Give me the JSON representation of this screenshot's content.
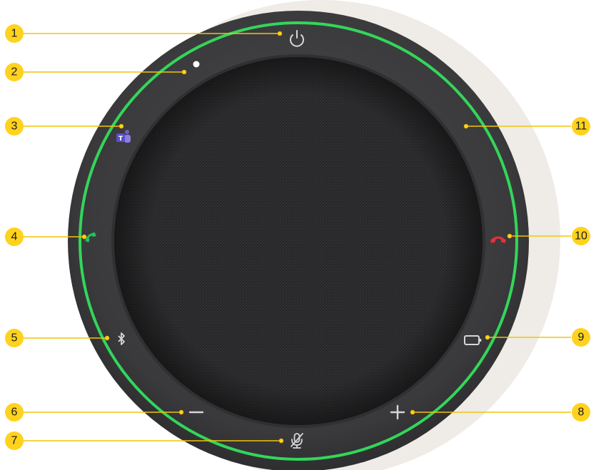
{
  "colors": {
    "background": "#ffffff",
    "shadow_backdrop": "#efebe6",
    "device_body": "#3b3b3d",
    "device_inner_ring": "#2a2a2c",
    "grille": "#262628",
    "led_ring": "#33d65a",
    "callout_fill": "#ffd21e",
    "callout_line": "#f2c40c",
    "icon_neutral": "#d6d6d6",
    "teams_purple": "#6e5fd6",
    "answer_green": "#1fc35a",
    "hangup_red": "#e8303a",
    "status_led": "#ffffff"
  },
  "device": {
    "name_icon_ring": "led-ring",
    "buttons": [
      {
        "icon": "power-icon"
      },
      {
        "icon": "status-led-icon"
      },
      {
        "icon": "teams-icon"
      },
      {
        "icon": "answer-call-icon"
      },
      {
        "icon": "bluetooth-icon"
      },
      {
        "icon": "volume-down-icon"
      },
      {
        "icon": "mute-microphone-icon"
      },
      {
        "icon": "volume-up-icon"
      },
      {
        "icon": "battery-icon"
      },
      {
        "icon": "end-call-icon"
      },
      {
        "icon": "led-ring-icon"
      }
    ]
  },
  "callouts": [
    {
      "number": "1"
    },
    {
      "number": "2"
    },
    {
      "number": "3"
    },
    {
      "number": "4"
    },
    {
      "number": "5"
    },
    {
      "number": "6"
    },
    {
      "number": "7"
    },
    {
      "number": "8"
    },
    {
      "number": "9"
    },
    {
      "number": "10"
    },
    {
      "number": "11"
    }
  ]
}
